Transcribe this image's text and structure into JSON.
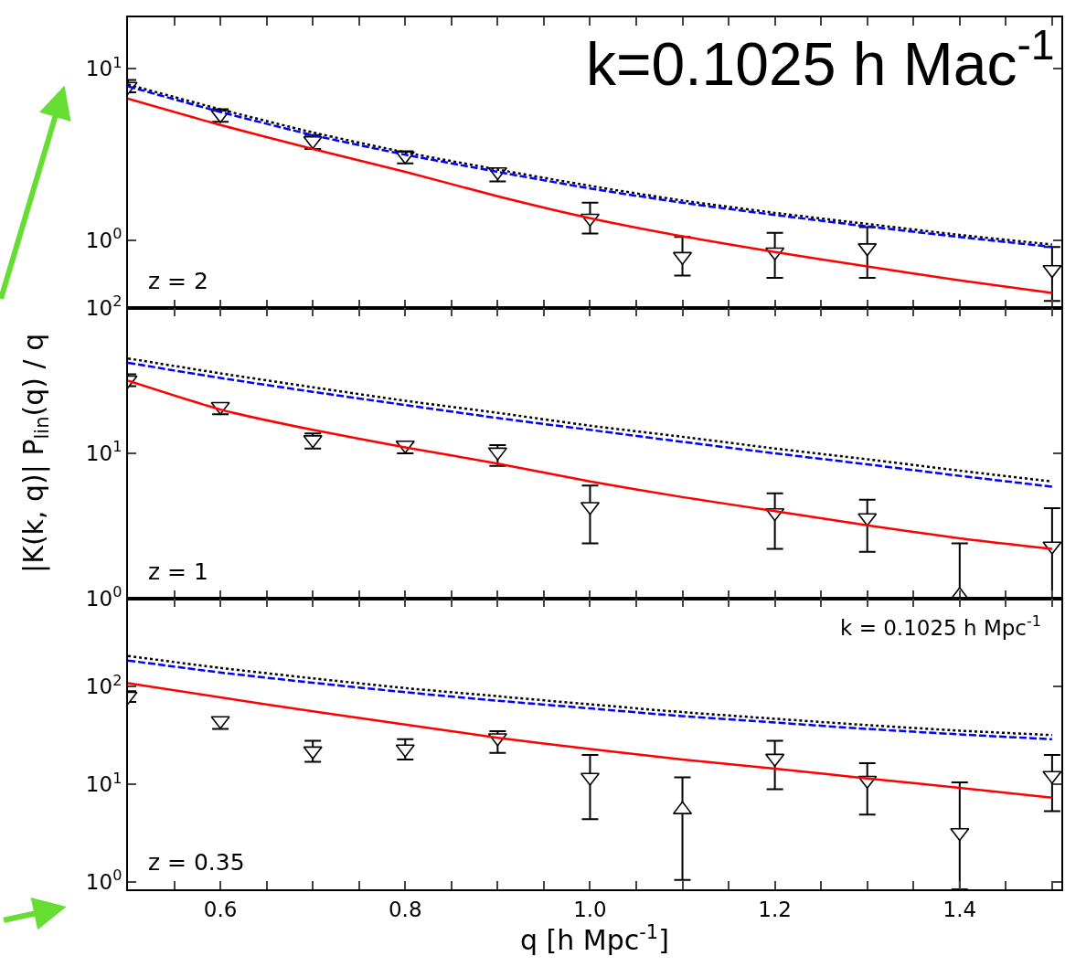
{
  "chart_data": [
    {
      "type": "line",
      "log": "y",
      "tick_labels": "y",
      "ylabel": "|K(k, q)| P$_{lin}$(q) / q",
      "x": [
        0.5,
        0.6,
        0.7,
        0.8,
        0.9,
        1.0,
        1.1,
        1.2,
        1.3,
        1.4,
        1.5
      ],
      "xlim": [
        0.5,
        1.51
      ],
      "xticks": [
        {
          "value": 0.55,
          "label": null
        },
        {
          "value": 0.6,
          "label": null
        },
        {
          "value": 0.65,
          "label": null
        },
        {
          "value": 0.7,
          "label": null
        },
        {
          "value": 0.75,
          "label": null
        },
        {
          "value": 0.8,
          "label": null
        },
        {
          "value": 0.85,
          "label": null
        },
        {
          "value": 0.9,
          "label": null
        },
        {
          "value": 0.95,
          "label": null
        },
        {
          "value": 1.0,
          "label": null
        },
        {
          "value": 1.05,
          "label": null
        },
        {
          "value": 1.1,
          "label": null
        },
        {
          "value": 1.15,
          "label": null
        },
        {
          "value": 1.2,
          "label": null
        },
        {
          "value": 1.25,
          "label": null
        },
        {
          "value": 1.3,
          "label": null
        },
        {
          "value": 1.35,
          "label": null
        },
        {
          "value": 1.4,
          "label": null
        },
        {
          "value": 1.45,
          "label": null
        },
        {
          "value": 1.5,
          "label": null
        }
      ],
      "ylim": [
        0.4,
        20
      ],
      "yticks": [
        {
          "value": 1,
          "label": "10$^{0}$"
        },
        {
          "value": 10,
          "label": "10$^{1}$"
        }
      ],
      "series": [
        {
          "type": "line",
          "color": "#000000",
          "line_style": "dotted",
          "values": [
            8.1,
            5.8,
            4.25,
            3.25,
            2.58,
            2.07,
            1.7,
            1.44,
            1.24,
            1.07,
            0.94
          ]
        },
        {
          "type": "line",
          "color": "#0000ff",
          "line_style": "dashed",
          "values": [
            7.9,
            5.6,
            4.1,
            3.15,
            2.5,
            2.0,
            1.65,
            1.4,
            1.2,
            1.04,
            0.91
          ]
        },
        {
          "type": "line",
          "color": "#ff0000",
          "line_style": "solid",
          "values": [
            6.7,
            4.7,
            3.4,
            2.5,
            1.8,
            1.34,
            1.05,
            0.85,
            0.7,
            0.58,
            0.49
          ]
        },
        {
          "type": "scatter",
          "color": "#000000",
          "marker": "triangle",
          "values": [
            7.9,
            5.4,
            3.8,
            3.1,
            2.5,
            1.34,
            0.8,
            0.85,
            0.9,
            null,
            0.67
          ],
          "errors": [
            [
              7.3,
              8.6
            ],
            [
              4.9,
              5.8
            ],
            [
              3.4,
              4.1
            ],
            [
              2.8,
              3.3
            ],
            [
              2.2,
              2.6
            ],
            [
              1.09,
              1.65
            ],
            [
              0.62,
              1.04
            ],
            [
              0.6,
              1.1
            ],
            [
              0.6,
              1.19
            ],
            null,
            [
              0.44,
              0.91
            ]
          ]
        }
      ],
      "annotations": [
        "z = 2",
        "k=0.1025 h Mac$^{-1}$"
      ]
    },
    {
      "type": "line",
      "log": "y",
      "tick_labels": "y",
      "x": [
        0.5,
        0.6,
        0.7,
        0.8,
        0.9,
        1.0,
        1.1,
        1.2,
        1.3,
        1.4,
        1.5
      ],
      "xlim": [
        0.5,
        1.51
      ],
      "xticks": [
        {
          "value": 0.55,
          "label": null
        },
        {
          "value": 0.6,
          "label": null
        },
        {
          "value": 0.65,
          "label": null
        },
        {
          "value": 0.7,
          "label": null
        },
        {
          "value": 0.75,
          "label": null
        },
        {
          "value": 0.8,
          "label": null
        },
        {
          "value": 0.85,
          "label": null
        },
        {
          "value": 0.9,
          "label": null
        },
        {
          "value": 0.95,
          "label": null
        },
        {
          "value": 1.0,
          "label": null
        },
        {
          "value": 1.05,
          "label": null
        },
        {
          "value": 1.1,
          "label": null
        },
        {
          "value": 1.15,
          "label": null
        },
        {
          "value": 1.2,
          "label": null
        },
        {
          "value": 1.25,
          "label": null
        },
        {
          "value": 1.3,
          "label": null
        },
        {
          "value": 1.35,
          "label": null
        },
        {
          "value": 1.4,
          "label": null
        },
        {
          "value": 1.45,
          "label": null
        },
        {
          "value": 1.5,
          "label": null
        }
      ],
      "ylim": [
        1,
        100
      ],
      "yticks": [
        {
          "value": 1,
          "label": "10$^{0}$"
        },
        {
          "value": 10,
          "label": "10$^{1}$"
        },
        {
          "value": 100,
          "label": "10$^{2}$"
        }
      ],
      "series": [
        {
          "type": "line",
          "color": "#000000",
          "line_style": "dotted",
          "values": [
            45,
            35.5,
            28.5,
            23,
            19,
            15.5,
            13,
            10.8,
            9.1,
            7.6,
            6.4
          ]
        },
        {
          "type": "line",
          "color": "#0000ff",
          "line_style": "dashed",
          "values": [
            42,
            33,
            26.5,
            21.5,
            17.5,
            14.5,
            12,
            10,
            8.4,
            7.0,
            5.9
          ]
        },
        {
          "type": "line",
          "color": "#ff0000",
          "line_style": "solid",
          "values": [
            31.6,
            20,
            14.5,
            11,
            8.5,
            6.4,
            5.0,
            4.0,
            3.2,
            2.6,
            2.2
          ]
        },
        {
          "type": "scatter",
          "color": "#000000",
          "marker": "triangle",
          "values": [
            32,
            21,
            12.4,
            11.4,
            10.2,
            4.3,
            null,
            3.9,
            3.6,
            null,
            2.3
          ],
          "errors": [
            [
              29,
              35
            ],
            [
              18.6,
              22
            ],
            [
              10.8,
              13.7
            ],
            [
              10,
              11.8
            ],
            [
              8.2,
              11.4
            ],
            [
              2.4,
              6.0
            ],
            null,
            [
              2.2,
              5.3
            ],
            [
              2.1,
              4.8
            ],
            null,
            [
              1,
              4.2
            ]
          ]
        },
        {
          "type": "scatter",
          "color": "#000000",
          "marker": "triangle",
          "values": [
            null,
            null,
            null,
            null,
            null,
            null,
            null,
            null,
            null,
            1.05,
            null
          ],
          "errors": [
            null,
            null,
            null,
            null,
            null,
            null,
            null,
            null,
            null,
            [
              1,
              2.4
            ],
            null
          ]
        }
      ],
      "annotations": [
        "z = 1"
      ]
    },
    {
      "type": "line",
      "log": "y",
      "xlabel": "q [h Mpc$^{-1}$]",
      "x": [
        0.5,
        0.6,
        0.7,
        0.8,
        0.9,
        1.0,
        1.1,
        1.2,
        1.3,
        1.4,
        1.5
      ],
      "xlim": [
        0.5,
        1.51
      ],
      "xticks": [
        {
          "value": 0.55,
          "label": null
        },
        {
          "value": 0.6,
          "label": "0.6"
        },
        {
          "value": 0.65,
          "label": null
        },
        {
          "value": 0.7,
          "label": null
        },
        {
          "value": 0.75,
          "label": null
        },
        {
          "value": 0.8,
          "label": "0.8"
        },
        {
          "value": 0.85,
          "label": null
        },
        {
          "value": 0.9,
          "label": null
        },
        {
          "value": 0.95,
          "label": null
        },
        {
          "value": 1.0,
          "label": "1.0"
        },
        {
          "value": 1.05,
          "label": null
        },
        {
          "value": 1.1,
          "label": null
        },
        {
          "value": 1.15,
          "label": null
        },
        {
          "value": 1.2,
          "label": "1.2"
        },
        {
          "value": 1.25,
          "label": null
        },
        {
          "value": 1.3,
          "label": null
        },
        {
          "value": 1.35,
          "label": null
        },
        {
          "value": 1.4,
          "label": "1.4"
        },
        {
          "value": 1.45,
          "label": null
        },
        {
          "value": 1.5,
          "label": null
        }
      ],
      "ylim": [
        0.84,
        800
      ],
      "yticks": [
        {
          "value": 1,
          "label": "10$^{0}$"
        },
        {
          "value": 10,
          "label": "10$^{1}$"
        },
        {
          "value": 100,
          "label": "10$^{2}$"
        }
      ],
      "series": [
        {
          "type": "line",
          "color": "#000000",
          "line_style": "dotted",
          "values": [
            207,
            156,
            122,
            97,
            80,
            66,
            55,
            47,
            40.5,
            35.5,
            32
          ]
        },
        {
          "type": "line",
          "color": "#0000ff",
          "line_style": "dashed",
          "values": [
            186,
            140,
            110,
            88,
            72,
            60,
            50,
            43,
            37,
            32.5,
            29
          ]
        },
        {
          "type": "line",
          "color": "#ff0000",
          "line_style": "solid",
          "values": [
            109,
            78,
            56,
            41,
            30,
            23,
            18,
            14.5,
            11.5,
            9.2,
            7.3
          ]
        },
        {
          "type": "scatter",
          "color": "#000000",
          "marker": "triangle",
          "values": [
            80,
            45,
            22,
            23,
            30,
            11.8,
            null,
            18.5,
            11,
            3.2,
            12.3
          ],
          "errors": [
            [
              70,
              90
            ],
            [
              37,
              48
            ],
            [
              17,
              28
            ],
            [
              18,
              29
            ],
            [
              21,
              35
            ],
            [
              4.4,
              20
            ],
            null,
            [
              8.9,
              28
            ],
            [
              4.9,
              16.5
            ],
            [
              0.84,
              10.5
            ],
            [
              5.3,
              20
            ]
          ]
        },
        {
          "type": "scatter",
          "color": "#000000",
          "marker": "triangle",
          "values": [
            null,
            null,
            null,
            null,
            null,
            null,
            5.5,
            null,
            null,
            null,
            null
          ],
          "errors": [
            null,
            null,
            null,
            null,
            null,
            null,
            [
              1.05,
              11.8
            ],
            null,
            null,
            null,
            null
          ]
        }
      ],
      "annotations": [
        "z = 0.35",
        "k = 0.1025 h Mpc$^{-1}$"
      ]
    }
  ]
}
